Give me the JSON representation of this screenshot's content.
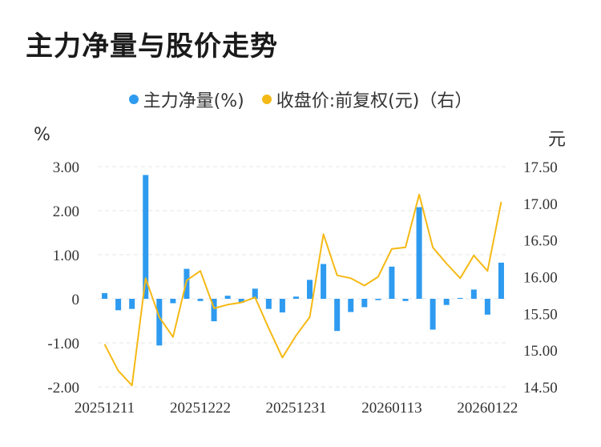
{
  "title": "主力净量与股价走势",
  "legend": [
    {
      "label": "主力净量(%)",
      "color": "#2e9bf0"
    },
    {
      "label": "收盘价:前复权(元)（右）",
      "color": "#f5b915"
    }
  ],
  "chart_data": {
    "type": "bar+line",
    "y_left_unit": "%",
    "y_right_unit": "元",
    "y_left_ticks": [
      "3.00",
      "2.00",
      "1.00",
      "0",
      "-1.00",
      "-2.00"
    ],
    "y_right_ticks": [
      "17.50",
      "17.00",
      "16.50",
      "16.00",
      "15.50",
      "15.00",
      "14.50"
    ],
    "ylim_left": [
      -2,
      3
    ],
    "ylim_right": [
      14.5,
      17.5
    ],
    "x_tick_labels": [
      "20251211",
      "20251222",
      "20251231",
      "20260113",
      "20260122"
    ],
    "x_tick_indices": [
      0,
      7,
      14,
      21,
      28
    ],
    "grid": true,
    "series": [
      {
        "name": "主力净量(%)",
        "type": "bar",
        "color": "#2e9bf0",
        "values": [
          0.13,
          -0.26,
          -0.23,
          2.81,
          -1.06,
          -0.1,
          0.68,
          -0.05,
          -0.51,
          0.07,
          -0.09,
          0.23,
          -0.23,
          -0.31,
          0.05,
          0.43,
          0.79,
          -0.73,
          -0.3,
          -0.19,
          -0.03,
          0.73,
          -0.05,
          2.08,
          -0.7,
          -0.14,
          0.02,
          0.21,
          -0.36,
          0.82
        ]
      },
      {
        "name": "收盘价:前复权(元)（右）",
        "type": "line",
        "color": "#f5b915",
        "values": [
          15.08,
          14.72,
          14.52,
          15.98,
          15.45,
          15.18,
          15.95,
          16.08,
          15.57,
          15.62,
          15.65,
          15.72,
          15.3,
          14.9,
          15.2,
          15.45,
          16.58,
          16.02,
          15.98,
          15.88,
          16.0,
          16.38,
          16.4,
          17.12,
          16.4,
          16.18,
          15.98,
          16.29,
          16.08,
          17.02
        ]
      }
    ]
  }
}
